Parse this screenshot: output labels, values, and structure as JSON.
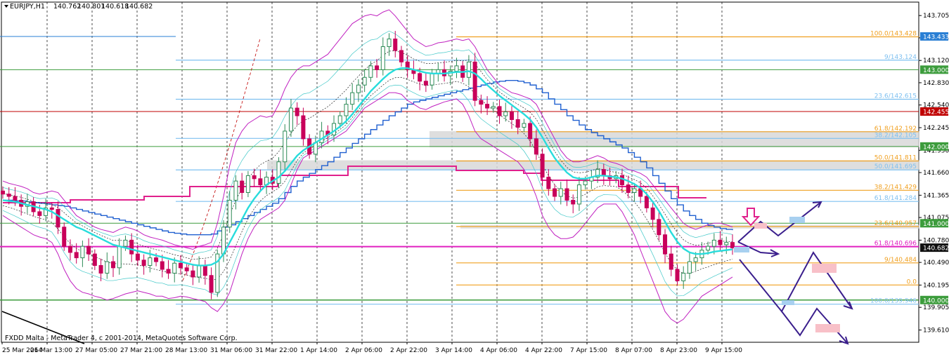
{
  "header": {
    "symbol": "EURJPY,H1",
    "open": "140.762",
    "high": "140.801",
    "low": "140.618",
    "close": "140.682"
  },
  "footer": "FXDD Malta - MetaTrader 4, c 2001-2014, MetaQuotes Software Corp.",
  "colors": {
    "bull": "#2e8b57",
    "bear": "#c8005a",
    "bollinger": "#c020c0",
    "ma_fast": "#28dcdc",
    "ma_slow": "#2060d0",
    "fib_blue": "#7ec0f0",
    "fib_orange": "#f0a020",
    "level_green": "#3c9c3c",
    "level_red": "#c00000",
    "level_magenta": "#e020c0",
    "zone_gray": "#d8d8d8",
    "arrow_navy": "#3a1e8c"
  },
  "chart_data": {
    "type": "candlestick",
    "ylim": [
      139.45,
      143.88
    ],
    "y_ticks": [
      "143.705",
      "143.415",
      "143.120",
      "142.830",
      "142.540",
      "142.245",
      "141.950",
      "141.660",
      "141.365",
      "141.075",
      "140.780",
      "140.490",
      "140.195",
      "139.905",
      "139.610"
    ],
    "x_ticks": [
      "25 Mar 2014",
      "26 Mar 13:00",
      "27 Mar 05:00",
      "27 Mar 21:00",
      "28 Mar 13:00",
      "31 Mar 06:00",
      "31 Mar 22:00",
      "1 Apr 14:00",
      "2 Apr 06:00",
      "2 Apr 22:00",
      "3 Apr 14:00",
      "4 Apr 06:00",
      "4 Apr 22:00",
      "7 Apr 15:00",
      "8 Apr 07:00",
      "8 Apr 23:00",
      "9 Apr 15:00"
    ],
    "price_tags": [
      {
        "value": "143.433",
        "color": "#2a7fd4"
      },
      {
        "value": "143.000",
        "color": "#3c9c3c"
      },
      {
        "value": "142.455",
        "color": "#c00000"
      },
      {
        "value": "142.000",
        "color": "#3c9c3c"
      },
      {
        "value": "141.000",
        "color": "#3c9c3c"
      },
      {
        "value": "140.682",
        "color": "#101010"
      },
      {
        "value": "140.000",
        "color": "#3c9c3c"
      }
    ],
    "fib_levels": [
      {
        "label": "100.0/143.428",
        "value": 143.428,
        "color": "#f0a020"
      },
      {
        "label": "9/143.124",
        "value": 143.124,
        "color": "#7ec0f0"
      },
      {
        "label": "23.6/142.615",
        "value": 142.615,
        "color": "#7ec0f0"
      },
      {
        "label": "61.8/142.192",
        "value": 142.192,
        "color": "#f0a020"
      },
      {
        "label": "38.2/142.105",
        "value": 142.105,
        "color": "#7ec0f0"
      },
      {
        "label": "50.0/141.811",
        "value": 141.811,
        "color": "#f0a020"
      },
      {
        "label": "50.0/141.695",
        "value": 141.695,
        "color": "#7ec0f0"
      },
      {
        "label": "38.2/141.429",
        "value": 141.429,
        "color": "#f0a020"
      },
      {
        "label": "61.8/141.284",
        "value": 141.284,
        "color": "#7ec0f0"
      },
      {
        "label": "23.6/140.957",
        "value": 140.957,
        "color": "#f0a020"
      },
      {
        "label": "61.8/140.696",
        "value": 140.696,
        "color": "#e020c0"
      },
      {
        "label": "9/140.484",
        "value": 140.484,
        "color": "#f0a020"
      },
      {
        "label": "0.0",
        "value": 140.196,
        "color": "#f0a020"
      },
      {
        "label": "100.0/139.946",
        "value": 139.946,
        "color": "#7ec0f0"
      }
    ],
    "close_series": [
      141.38,
      141.35,
      141.3,
      141.22,
      141.28,
      141.15,
      141.1,
      141.2,
      141.18,
      140.95,
      140.7,
      140.62,
      140.55,
      140.7,
      140.6,
      140.45,
      140.35,
      140.5,
      140.42,
      140.7,
      140.78,
      140.6,
      140.52,
      140.45,
      140.55,
      140.5,
      140.4,
      140.35,
      140.48,
      140.42,
      140.38,
      140.3,
      140.45,
      140.32,
      140.1,
      140.6,
      140.95,
      141.3,
      141.55,
      141.4,
      141.62,
      141.58,
      141.5,
      141.6,
      141.52,
      141.8,
      142.2,
      142.5,
      142.4,
      142.1,
      141.9,
      142.05,
      142.2,
      142.15,
      142.3,
      142.4,
      142.55,
      142.7,
      142.8,
      142.9,
      143.05,
      143.0,
      143.3,
      143.4,
      143.25,
      143.1,
      143.0,
      142.95,
      142.85,
      142.8,
      142.95,
      143.0,
      142.92,
      142.98,
      143.05,
      142.9,
      143.1,
      142.6,
      142.55,
      142.5,
      142.52,
      142.4,
      142.45,
      142.35,
      142.25,
      142.3,
      142.1,
      141.9,
      141.6,
      141.45,
      141.35,
      141.45,
      141.3,
      141.25,
      141.5,
      141.55,
      141.6,
      141.7,
      141.62,
      141.58,
      141.62,
      141.5,
      141.4,
      141.45,
      141.35,
      141.2,
      141.05,
      140.85,
      140.6,
      140.4,
      140.25,
      140.35,
      140.5,
      140.55,
      140.65,
      140.7,
      140.78,
      140.72,
      140.75,
      140.68
    ],
    "bb_upper": [
      141.55,
      141.52,
      141.5,
      141.48,
      141.45,
      141.4,
      141.38,
      141.4,
      141.42,
      141.4,
      141.3,
      141.2,
      141.1,
      141.05,
      141.0,
      140.95,
      140.92,
      140.9,
      140.88,
      140.92,
      140.95,
      140.93,
      140.9,
      140.85,
      140.82,
      140.8,
      140.78,
      140.75,
      140.72,
      140.7,
      140.68,
      140.66,
      140.7,
      140.72,
      140.75,
      141.0,
      141.35,
      141.75,
      142.05,
      142.2,
      142.3,
      142.35,
      142.4,
      142.38,
      142.4,
      142.55,
      142.75,
      142.9,
      143.0,
      143.05,
      143.05,
      143.1,
      143.15,
      143.2,
      143.3,
      143.4,
      143.5,
      143.6,
      143.65,
      143.7,
      143.72,
      143.7,
      143.75,
      143.78,
      143.7,
      143.6,
      143.5,
      143.4,
      143.35,
      143.3,
      143.32,
      143.35,
      143.36,
      143.38,
      143.4,
      143.38,
      143.4,
      143.3,
      143.15,
      143.0,
      142.9,
      142.8,
      142.75,
      142.7,
      142.68,
      142.65,
      142.62,
      142.55,
      142.4,
      142.25,
      142.1,
      141.95,
      141.85,
      141.8,
      141.8,
      141.82,
      141.85,
      141.88,
      141.85,
      141.8,
      141.78,
      141.75,
      141.7,
      141.68,
      141.65,
      141.6,
      141.5,
      141.4,
      141.3,
      141.2,
      141.1,
      141.0,
      140.95,
      140.92,
      140.95,
      140.98,
      141.0,
      141.0,
      140.98,
      140.95
    ],
    "bb_lower": [
      141.1,
      141.05,
      141.0,
      140.95,
      140.9,
      140.85,
      140.82,
      140.8,
      140.75,
      140.6,
      140.4,
      140.25,
      140.15,
      140.1,
      140.08,
      140.05,
      140.03,
      140.0,
      140.02,
      140.05,
      140.08,
      140.1,
      140.12,
      140.1,
      140.08,
      140.05,
      140.05,
      140.02,
      140.03,
      140.05,
      140.04,
      140.02,
      140.0,
      139.98,
      139.9,
      139.85,
      139.95,
      140.1,
      140.35,
      140.6,
      140.8,
      140.95,
      141.05,
      141.1,
      141.15,
      141.2,
      141.3,
      141.5,
      141.7,
      141.85,
      141.9,
      141.95,
      142.0,
      142.05,
      142.1,
      142.15,
      142.2,
      142.3,
      142.4,
      142.5,
      142.55,
      142.6,
      142.65,
      142.7,
      142.7,
      142.68,
      142.6,
      142.55,
      142.5,
      142.48,
      142.52,
      142.55,
      142.58,
      142.6,
      142.62,
      142.55,
      142.4,
      142.2,
      142.1,
      142.05,
      142.0,
      141.95,
      141.9,
      141.85,
      141.8,
      141.7,
      141.55,
      141.35,
      141.1,
      140.95,
      140.85,
      140.8,
      140.8,
      140.82,
      140.9,
      141.0,
      141.1,
      141.2,
      141.25,
      141.25,
      141.25,
      141.15,
      141.0,
      140.85,
      140.65,
      140.45,
      140.25,
      140.05,
      139.85,
      139.75,
      139.7,
      139.75,
      139.85,
      139.95,
      140.05,
      140.1,
      140.15,
      140.2,
      140.25,
      140.3
    ],
    "ma_fast": [
      141.3,
      141.29,
      141.28,
      141.26,
      141.24,
      141.22,
      141.2,
      141.18,
      141.15,
      141.1,
      141.05,
      141.0,
      140.95,
      140.92,
      140.88,
      140.84,
      140.8,
      140.76,
      140.72,
      140.7,
      140.68,
      140.66,
      140.64,
      140.62,
      140.6,
      140.58,
      140.56,
      140.54,
      140.52,
      140.5,
      140.48,
      140.46,
      140.45,
      140.45,
      140.46,
      140.5,
      140.6,
      140.75,
      140.9,
      141.05,
      141.2,
      141.32,
      141.42,
      141.5,
      141.55,
      141.6,
      141.68,
      141.78,
      141.88,
      141.95,
      142.0,
      142.05,
      142.1,
      142.15,
      142.2,
      142.26,
      142.33,
      142.42,
      142.52,
      142.62,
      142.72,
      142.8,
      142.88,
      142.95,
      143.0,
      143.02,
      143.02,
      143.0,
      142.98,
      142.96,
      142.95,
      142.95,
      142.95,
      142.96,
      142.97,
      142.97,
      142.98,
      142.95,
      142.88,
      142.8,
      142.73,
      142.66,
      142.6,
      142.54,
      142.48,
      142.42,
      142.35,
      142.25,
      142.12,
      141.98,
      141.85,
      141.75,
      141.66,
      141.6,
      141.58,
      141.58,
      141.6,
      141.62,
      141.62,
      141.61,
      141.6,
      141.58,
      141.55,
      141.51,
      141.46,
      141.38,
      141.28,
      141.16,
      141.02,
      140.88,
      140.76,
      140.67,
      140.62,
      140.6,
      140.6,
      140.61,
      140.63,
      140.64,
      140.65,
      140.66
    ],
    "ma_slow": [
      141.3,
      141.3,
      141.29,
      141.29,
      141.28,
      141.27,
      141.26,
      141.25,
      141.24,
      141.23,
      141.22,
      141.2,
      141.18,
      141.16,
      141.14,
      141.12,
      141.1,
      141.08,
      141.06,
      141.04,
      141.02,
      141.0,
      140.98,
      140.96,
      140.94,
      140.92,
      140.9,
      140.88,
      140.87,
      140.86,
      140.85,
      140.85,
      140.85,
      140.85,
      140.86,
      140.9,
      140.95,
      140.98,
      141.02,
      141.06,
      141.1,
      141.14,
      141.18,
      141.22,
      141.26,
      141.32,
      141.4,
      141.48,
      141.55,
      141.6,
      141.65,
      141.7,
      141.75,
      141.8,
      141.86,
      141.92,
      141.98,
      142.04,
      142.1,
      142.16,
      142.22,
      142.28,
      142.34,
      142.4,
      142.45,
      142.5,
      142.55,
      142.58,
      142.6,
      142.62,
      142.64,
      142.66,
      142.68,
      142.7,
      142.72,
      142.74,
      142.76,
      142.78,
      142.8,
      142.82,
      142.84,
      142.85,
      142.86,
      142.86,
      142.85,
      142.83,
      142.8,
      142.75,
      142.7,
      142.62,
      142.55,
      142.48,
      142.4,
      142.34,
      142.28,
      142.22,
      142.18,
      142.14,
      142.1,
      142.06,
      142.02,
      141.98,
      141.92,
      141.86,
      141.8,
      141.72,
      141.62,
      141.52,
      141.42,
      141.32,
      141.24,
      141.16,
      141.1,
      141.05,
      141.0,
      140.97,
      140.95,
      140.93,
      140.92,
      140.91
    ]
  }
}
